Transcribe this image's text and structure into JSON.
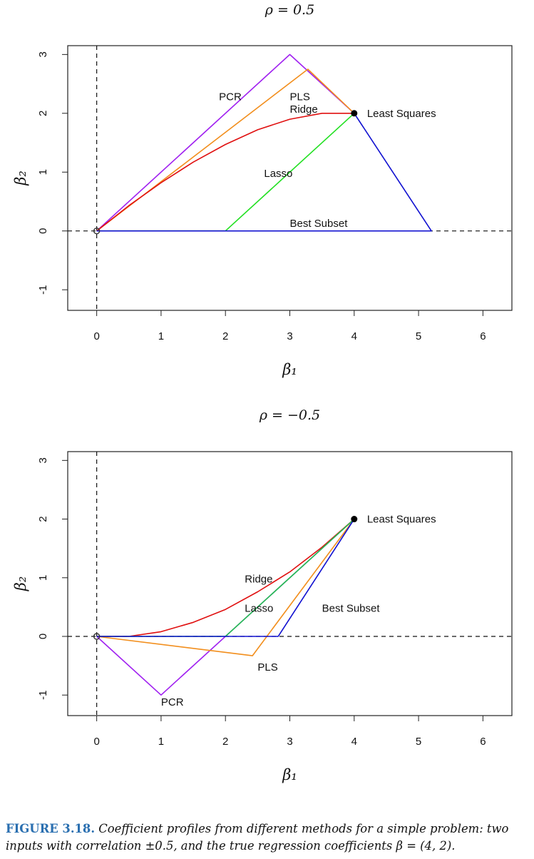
{
  "figure": {
    "caption_label": "FIGURE 3.18.",
    "caption_text": "Coefficient profiles from different methods for a simple problem: two inputs with correlation ±0.5, and the true regression coefficients β = (4, 2)."
  },
  "chart_data": [
    {
      "type": "line",
      "title": "ρ = 0.5",
      "xlabel": "β₁",
      "ylabel": "β₂",
      "xlim": [
        -0.45,
        6.45
      ],
      "ylim": [
        -1.35,
        3.15
      ],
      "xticks": [
        0,
        1,
        2,
        3,
        4,
        5,
        6
      ],
      "yticks": [
        -1,
        0,
        1,
        2,
        3
      ],
      "grid": false,
      "reference_lines": {
        "x": 0,
        "y": 0,
        "style": "dashed"
      },
      "series": [
        {
          "name": "PCR",
          "color": "#a020f0",
          "x": [
            0,
            3,
            4
          ],
          "y": [
            0,
            3,
            2
          ]
        },
        {
          "name": "PLS",
          "color": "#f28e1c",
          "x": [
            0,
            3.28,
            4
          ],
          "y": [
            0,
            2.75,
            2
          ]
        },
        {
          "name": "Ridge",
          "color": "#e01010",
          "x": [
            0,
            0.5,
            1,
            1.5,
            2,
            2.5,
            3,
            3.5,
            4
          ],
          "y": [
            0,
            0.43,
            0.82,
            1.17,
            1.47,
            1.72,
            1.9,
            2.0,
            2.0
          ]
        },
        {
          "name": "Lasso",
          "color": "#22e022",
          "x": [
            0,
            2.0,
            4
          ],
          "y": [
            0,
            0,
            2
          ]
        },
        {
          "name": "Best Subset",
          "color": "#1010d0",
          "x": [
            0,
            5.2,
            4
          ],
          "y": [
            0,
            0,
            2
          ]
        }
      ],
      "points": [
        {
          "label": "Least Squares",
          "x": 4,
          "y": 2,
          "filled": true
        },
        {
          "label": "",
          "x": 0,
          "y": 0,
          "filled": false
        }
      ],
      "annotations": [
        {
          "text": "PCR",
          "x": 1.9,
          "y": 2.28
        },
        {
          "text": "PLS",
          "x": 3.0,
          "y": 2.28
        },
        {
          "text": "Ridge",
          "x": 3.0,
          "y": 2.07
        },
        {
          "text": "Lasso",
          "x": 2.6,
          "y": 0.98
        },
        {
          "text": "Least Squares",
          "x": 4.2,
          "y": 2.0
        },
        {
          "text": "Best Subset",
          "x": 3.0,
          "y": 0.13
        }
      ]
    },
    {
      "type": "line",
      "title": "ρ = −0.5",
      "xlabel": "β₁",
      "ylabel": "β₂",
      "xlim": [
        -0.45,
        6.45
      ],
      "ylim": [
        -1.35,
        3.15
      ],
      "xticks": [
        0,
        1,
        2,
        3,
        4,
        5,
        6
      ],
      "yticks": [
        -1,
        0,
        1,
        2,
        3
      ],
      "grid": false,
      "reference_lines": {
        "x": 0,
        "y": 0,
        "style": "dashed"
      },
      "series": [
        {
          "name": "PCR",
          "color": "#a020f0",
          "x": [
            0,
            1,
            4
          ],
          "y": [
            0,
            -1,
            2
          ]
        },
        {
          "name": "PLS",
          "color": "#f28e1c",
          "x": [
            0,
            2.42,
            4
          ],
          "y": [
            0,
            -0.33,
            2
          ]
        },
        {
          "name": "Ridge",
          "color": "#e01010",
          "x": [
            0,
            0.5,
            1,
            1.5,
            2,
            2.5,
            3,
            3.5,
            4
          ],
          "y": [
            0,
            0.0,
            0.08,
            0.24,
            0.46,
            0.76,
            1.1,
            1.52,
            2.0
          ]
        },
        {
          "name": "Lasso",
          "color": "#22c050",
          "x": [
            0,
            2.0,
            4
          ],
          "y": [
            0,
            0,
            2
          ]
        },
        {
          "name": "Best Subset",
          "color": "#1010d0",
          "x": [
            0,
            2.82,
            4
          ],
          "y": [
            0,
            0,
            2
          ]
        }
      ],
      "points": [
        {
          "label": "Least Squares",
          "x": 4,
          "y": 2,
          "filled": true
        },
        {
          "label": "",
          "x": 0,
          "y": 0,
          "filled": false
        }
      ],
      "annotations": [
        {
          "text": "Ridge",
          "x": 2.3,
          "y": 0.98
        },
        {
          "text": "Lasso",
          "x": 2.3,
          "y": 0.48
        },
        {
          "text": "Best Subset",
          "x": 3.5,
          "y": 0.48
        },
        {
          "text": "PLS",
          "x": 2.5,
          "y": -0.52
        },
        {
          "text": "PCR",
          "x": 1.0,
          "y": -1.12
        },
        {
          "text": "Least Squares",
          "x": 4.2,
          "y": 2.0
        }
      ]
    }
  ]
}
